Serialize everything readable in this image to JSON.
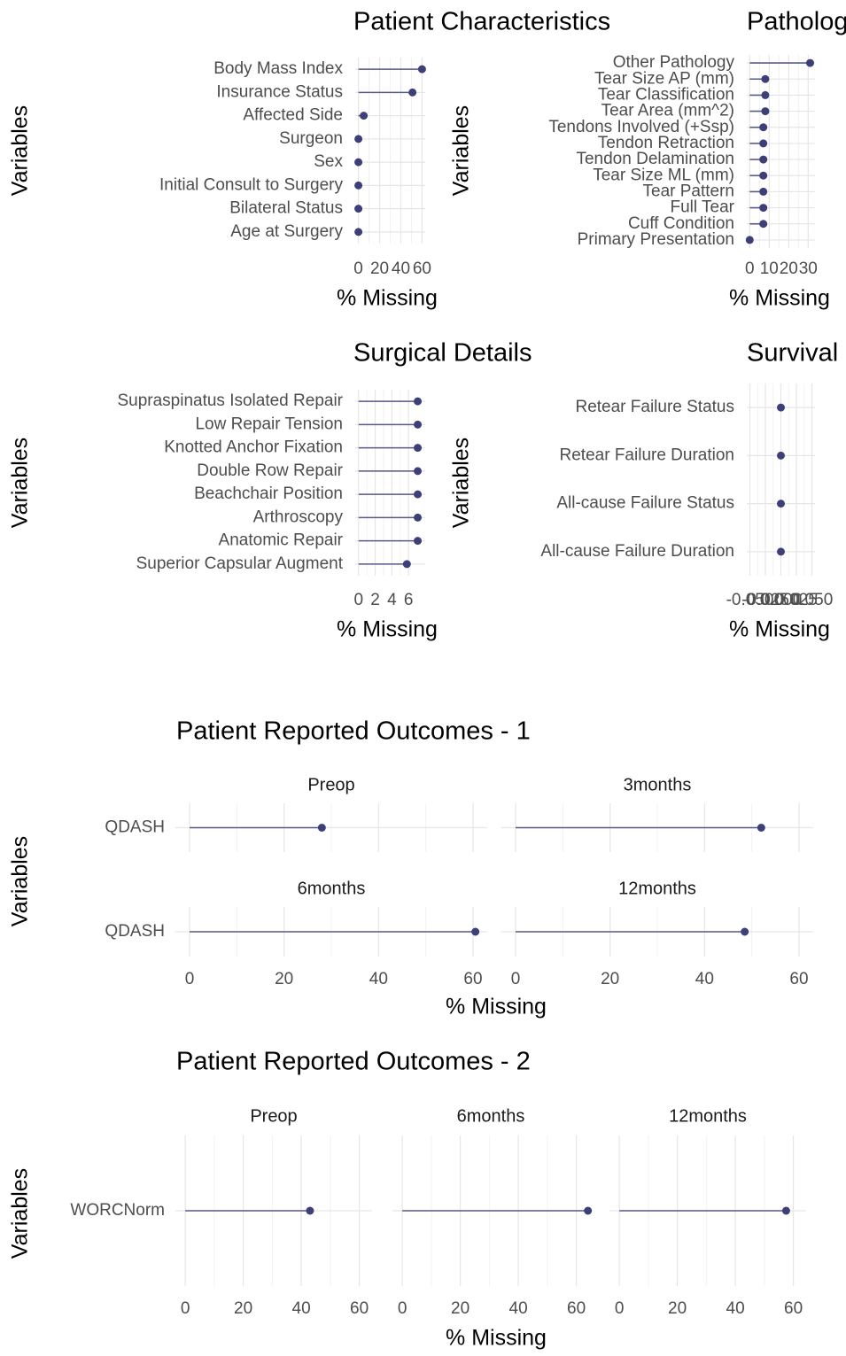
{
  "chart_data": [
    {
      "type": "lollipop",
      "title": "Patient Characteristics",
      "x_label": "% Missing",
      "y_label": "Variables",
      "categories": [
        "Body Mass Index",
        "Insurance Status",
        "Affected Side",
        "Surgeon",
        "Sex",
        "Initial Consult to Surgery",
        "Bilateral Status",
        "Age at Surgery"
      ],
      "values": [
        60,
        51,
        5,
        0,
        0,
        0,
        0,
        0
      ],
      "color": "#3d3f78",
      "xlim": [
        -3,
        63
      ],
      "xticks": [
        0,
        20,
        40,
        60
      ],
      "grid": true
    },
    {
      "type": "lollipop",
      "title": "Pathology",
      "x_label": "% Missing",
      "y_label": "Variables",
      "categories": [
        "Other Pathology",
        "Tear Size AP (mm)",
        "Tear Classification",
        "Tear Area (mm^2)",
        "Tendons Involved (+Ssp)",
        "Tendon Retraction",
        "Tendon Delamination",
        "Tear Size ML (mm)",
        "Tear Pattern",
        "Full Tear",
        "Cuff Condition",
        "Primary Presentation"
      ],
      "values": [
        31,
        8,
        8,
        8,
        7,
        7,
        7,
        7,
        7,
        7,
        7,
        0
      ],
      "color": "#3d3f78",
      "xlim": [
        -1.5,
        33.5
      ],
      "xticks": [
        0,
        10,
        20,
        30
      ],
      "grid": true
    },
    {
      "type": "lollipop",
      "title": "Surgical Details",
      "x_label": "% Missing",
      "y_label": "Variables",
      "categories": [
        "Supraspinatus Isolated Repair",
        "Low Repair Tension",
        "Knotted Anchor Fixation",
        "Double Row Repair",
        "Beachchair Position",
        "Arthroscopy",
        "Anatomic Repair",
        "Superior Capsular Augment"
      ],
      "values": [
        7.1,
        7.1,
        7.1,
        7.1,
        7.1,
        7.1,
        7.1,
        5.8
      ],
      "color": "#3d3f78",
      "xlim": [
        -0.4,
        8
      ],
      "xticks": [
        0,
        2,
        4,
        6
      ],
      "grid": true
    },
    {
      "type": "lollipop",
      "title": "Survival",
      "x_label": "% Missing",
      "y_label": "Variables",
      "categories": [
        "Retear Failure Status",
        "Retear Failure Duration",
        "All-cause Failure Status",
        "All-cause Failure Duration"
      ],
      "values": [
        0,
        0,
        0,
        0
      ],
      "color": "#3d3f78",
      "xlim": [
        -0.055,
        0.055
      ],
      "xticks": [
        {
          "value": -0.05,
          "label": "-0.050"
        },
        {
          "value": -0.025,
          "label": "-0.025"
        },
        {
          "value": 0,
          "label": "0.000"
        },
        {
          "value": 0.025,
          "label": "0.025"
        },
        {
          "value": 0.05,
          "label": "0.050"
        }
      ],
      "grid": true
    },
    {
      "type": "lollipop",
      "title": "Patient Reported Outcomes - 1",
      "x_label": "% Missing",
      "y_label": "Variables",
      "categories": [
        "QDASH"
      ],
      "color": "#3d3f78",
      "series": [
        {
          "name": "Preop",
          "values": [
            28
          ]
        },
        {
          "name": "3months",
          "values": [
            52
          ]
        },
        {
          "name": "6months",
          "values": [
            60.5
          ]
        },
        {
          "name": "12months",
          "values": [
            48.5
          ]
        }
      ],
      "xlim": [
        -3,
        63
      ],
      "xticks": [
        0,
        20,
        40,
        60
      ],
      "grid": true
    },
    {
      "type": "lollipop",
      "title": "Patient Reported Outcomes - 2",
      "x_label": "% Missing",
      "y_label": "Variables",
      "categories": [
        "WORCNorm"
      ],
      "color": "#3d3f78",
      "series": [
        {
          "name": "Preop",
          "values": [
            43
          ]
        },
        {
          "name": "6months",
          "values": [
            64
          ]
        },
        {
          "name": "12months",
          "values": [
            57.5
          ]
        }
      ],
      "xlim": [
        -3.4,
        64.4
      ],
      "xticks": [
        0,
        20,
        40,
        60
      ],
      "grid": true
    }
  ]
}
